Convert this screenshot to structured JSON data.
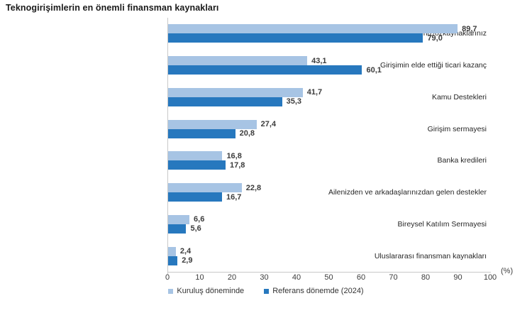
{
  "title": "Teknogirişimlerin en önemli finansman kaynakları",
  "axis_unit_label": "(%)",
  "chart_data": {
    "type": "bar",
    "orientation": "horizontal",
    "title": "Teknogirişimlerin en önemli finansman kaynakları",
    "categories": [
      "Kendi sermayeniz/özkaynaklarınız",
      "Girişimin elde ettiği ticari kazanç",
      "Kamu Destekleri",
      "Girişim sermayesi",
      "Banka kredileri",
      "Ailenizden ve arkadaşlarınızdan gelen destekler",
      "Bireysel Katılım Sermayesi",
      "Uluslararası finansman kaynakları"
    ],
    "series": [
      {
        "name": "Kuruluş döneminde",
        "color": "#a7c4e4",
        "values": [
          89.7,
          43.1,
          41.7,
          27.4,
          16.8,
          22.8,
          6.6,
          2.4
        ],
        "display": [
          "89,7",
          "43,1",
          "41,7",
          "27,4",
          "16,8",
          "22,8",
          "6,6",
          "2,4"
        ]
      },
      {
        "name": "Referans dönemde (2024)",
        "color": "#2778be",
        "values": [
          79.0,
          60.1,
          35.3,
          20.8,
          17.8,
          16.7,
          5.6,
          2.9
        ],
        "display": [
          "79,0",
          "60,1",
          "35,3",
          "20,8",
          "17,8",
          "16,7",
          "5,6",
          "2,9"
        ]
      }
    ],
    "xlabel": "(%)",
    "xlim": [
      0,
      100
    ],
    "x_ticks": [
      "0",
      "10",
      "20",
      "30",
      "40",
      "50",
      "60",
      "70",
      "80",
      "90",
      "100"
    ],
    "grid": false,
    "legend_position": "bottom-center"
  }
}
